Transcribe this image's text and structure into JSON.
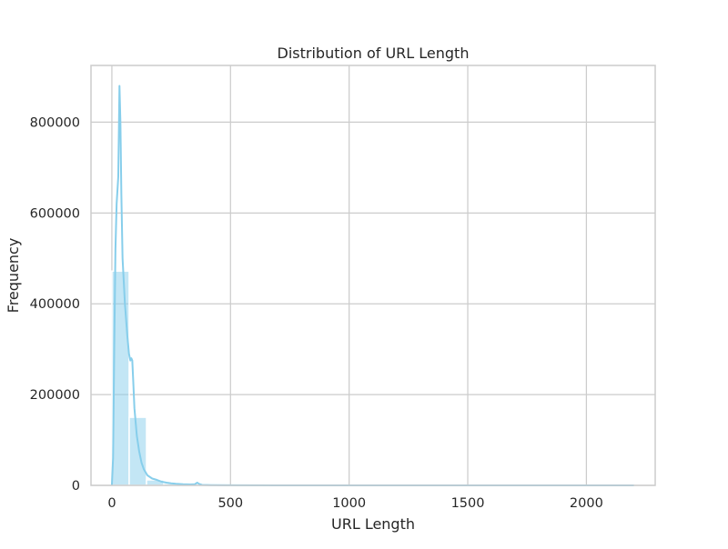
{
  "chart_data": {
    "type": "bar",
    "title": "Distribution of URL Length",
    "xlabel": "URL Length",
    "ylabel": "Frequency",
    "xlim": [
      -88,
      2290
    ],
    "ylim": [
      0,
      925000
    ],
    "xticks": [
      0,
      500,
      1000,
      1500,
      2000
    ],
    "yticks": [
      0,
      200000,
      400000,
      600000,
      800000
    ],
    "grid": true,
    "bar_color": "#87ceeb",
    "kde_color": "#87ceeb",
    "bins": [
      {
        "x0": 0,
        "x1": 73,
        "count": 472000
      },
      {
        "x0": 73,
        "x1": 146,
        "count": 150000
      },
      {
        "x0": 146,
        "x1": 219,
        "count": 12000
      },
      {
        "x0": 219,
        "x1": 292,
        "count": 4000
      },
      {
        "x0": 292,
        "x1": 365,
        "count": 2500
      },
      {
        "x0": 365,
        "x1": 438,
        "count": 800
      },
      {
        "x0": 438,
        "x1": 511,
        "count": 300
      },
      {
        "x0": 511,
        "x1": 584,
        "count": 150
      },
      {
        "x0": 584,
        "x1": 657,
        "count": 100
      }
    ],
    "kde": [
      [
        0,
        0
      ],
      [
        5,
        60000
      ],
      [
        10,
        300000
      ],
      [
        15,
        520000
      ],
      [
        20,
        620000
      ],
      [
        27,
        680000
      ],
      [
        32,
        880000
      ],
      [
        36,
        800000
      ],
      [
        40,
        640000
      ],
      [
        45,
        500000
      ],
      [
        55,
        400000
      ],
      [
        65,
        330000
      ],
      [
        72,
        290000
      ],
      [
        78,
        275000
      ],
      [
        82,
        280000
      ],
      [
        86,
        275000
      ],
      [
        90,
        230000
      ],
      [
        95,
        170000
      ],
      [
        105,
        110000
      ],
      [
        115,
        75000
      ],
      [
        125,
        50000
      ],
      [
        135,
        35000
      ],
      [
        150,
        22000
      ],
      [
        170,
        15000
      ],
      [
        190,
        12000
      ],
      [
        210,
        8000
      ],
      [
        230,
        6000
      ],
      [
        250,
        4500
      ],
      [
        270,
        3500
      ],
      [
        300,
        2500
      ],
      [
        330,
        2000
      ],
      [
        350,
        2500
      ],
      [
        360,
        6000
      ],
      [
        368,
        3000
      ],
      [
        380,
        1000
      ],
      [
        420,
        500
      ],
      [
        500,
        300
      ],
      [
        700,
        100
      ],
      [
        1000,
        50
      ],
      [
        1500,
        20
      ],
      [
        2000,
        10
      ],
      [
        2200,
        5
      ]
    ]
  }
}
